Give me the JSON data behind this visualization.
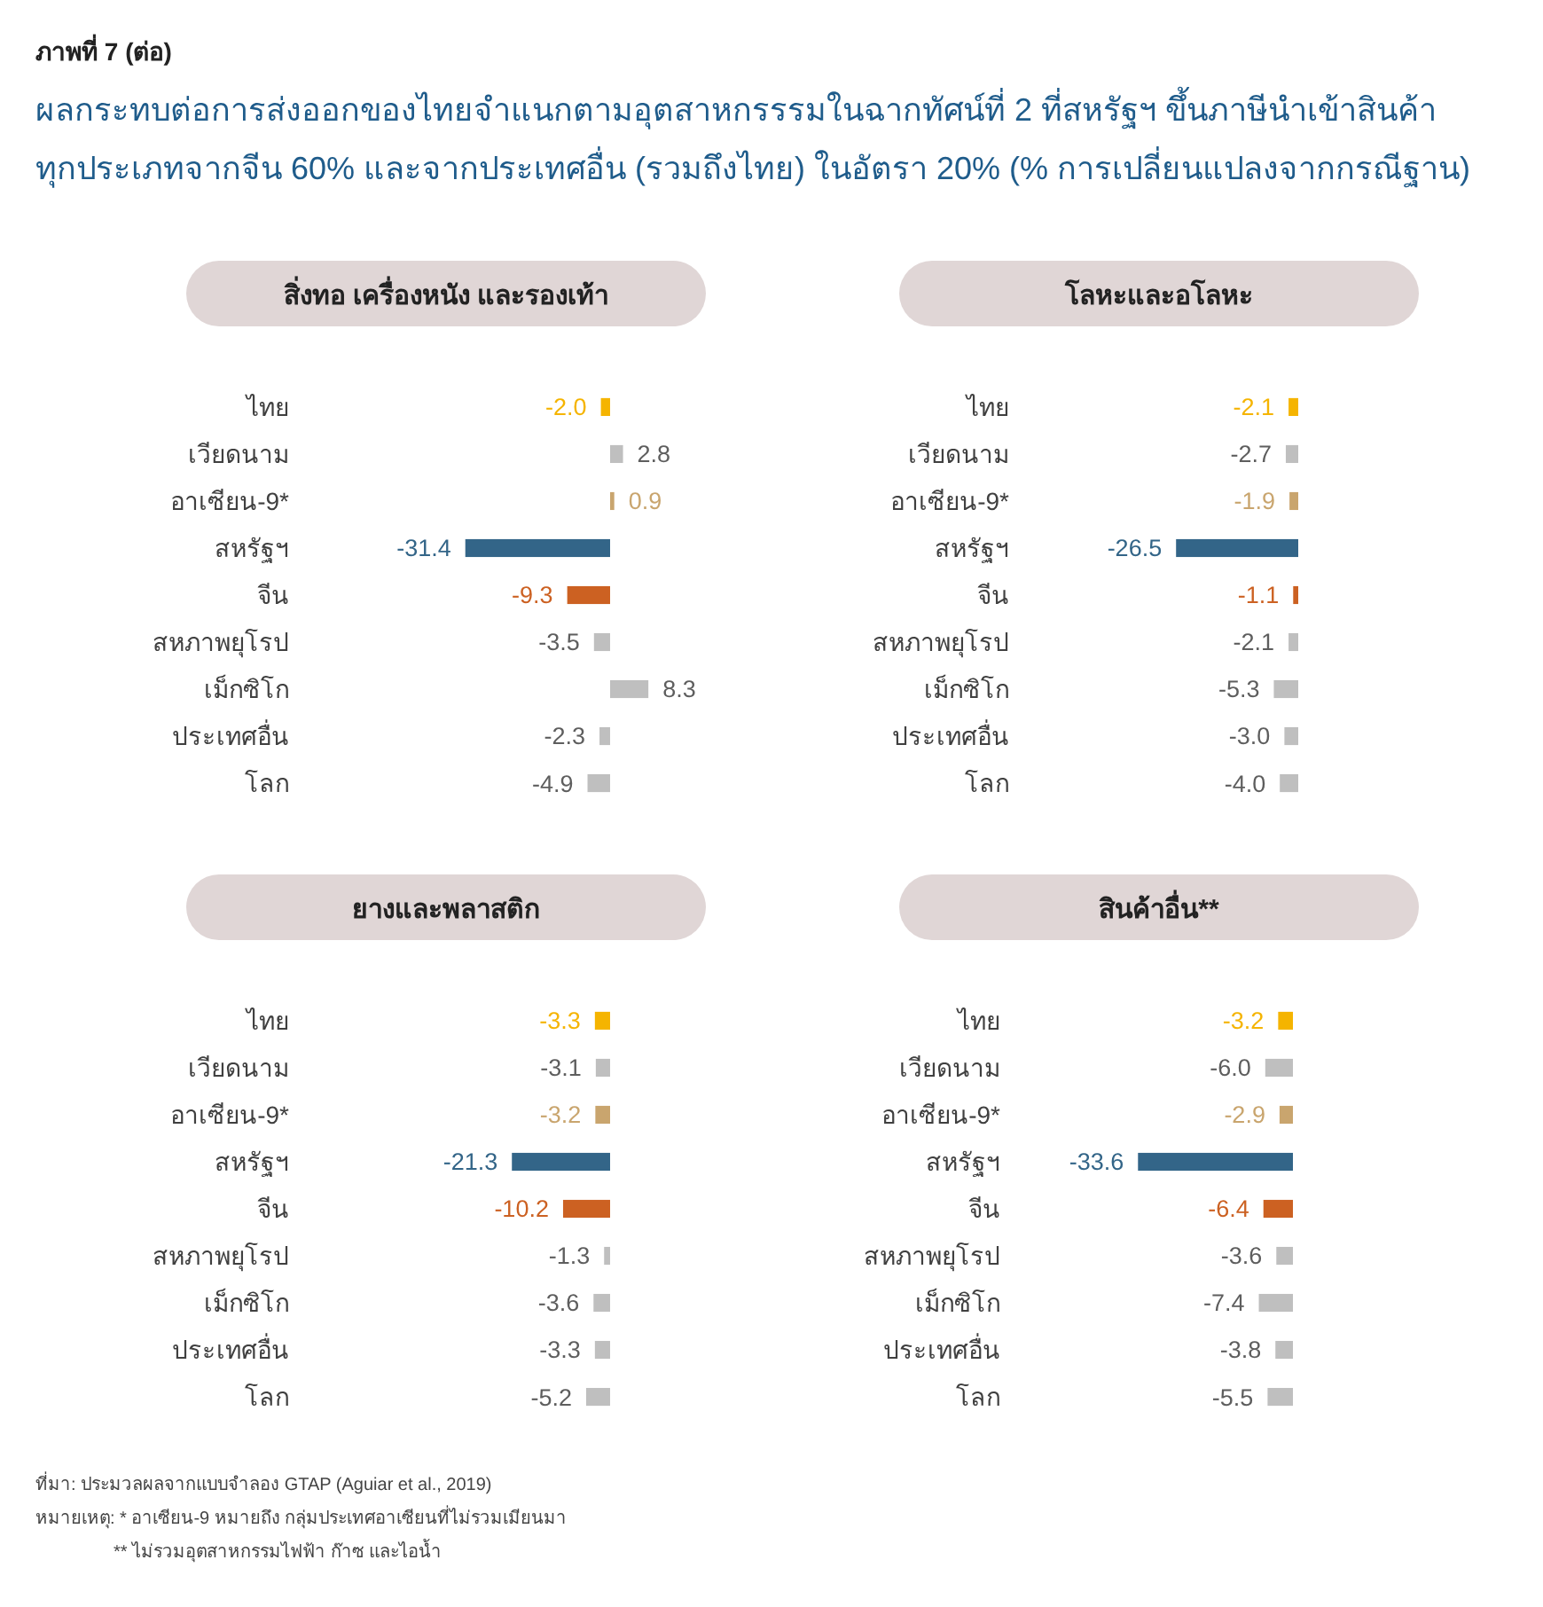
{
  "chart_data": [
    {
      "type": "bar",
      "orientation": "horizontal",
      "title": "สิ่งทอ เครื่องหนัง และรองเท้า",
      "categories": [
        "ไทย",
        "เวียดนาม",
        "อาเซียน-9*",
        "สหรัฐฯ",
        "จีน",
        "สหภาพยุโรป",
        "เม็กซิโก",
        "ประเทศอื่น",
        "โลก"
      ],
      "values": [
        -2.0,
        2.8,
        0.9,
        -31.4,
        -9.3,
        -3.5,
        8.3,
        -2.3,
        -4.9
      ],
      "colors": [
        "#f5b400",
        "#bfbfbf",
        "#c9a56e",
        "#336588",
        "#cc6122",
        "#bfbfbf",
        "#bfbfbf",
        "#bfbfbf",
        "#bfbfbf"
      ],
      "value_labels": [
        "-2.0",
        "2.8",
        "0.9",
        "-31.4",
        "-9.3",
        "-3.5",
        "8.3",
        "-2.3",
        "-4.9"
      ],
      "annotations": [
        "ภาพที่ 7 (ต่อ)",
        "ผลกระทบต่อการส่งออกของไทยจำแนกตามอุตสาหกรรรมในฉากทัศน์ที่ 2 ที่สหรัฐฯ ขึ้นภาษีนำเข้าสินค้า",
        "ทุกประเภทจากจีน 60% และจากประเทศอื่น (รวมถึงไทย) ในอัตรา 20% (% การเปลี่ยนแปลงจากกรณีฐาน)"
      ]
    },
    {
      "type": "bar",
      "orientation": "horizontal",
      "title": "โลหะและอโลหะ",
      "categories": [
        "ไทย",
        "เวียดนาม",
        "อาเซียน-9*",
        "สหรัฐฯ",
        "จีน",
        "สหภาพยุโรป",
        "เม็กซิโก",
        "ประเทศอื่น",
        "โลก"
      ],
      "values": [
        -2.1,
        -2.7,
        -1.9,
        -26.5,
        -1.1,
        -2.1,
        -5.3,
        -3.0,
        -4.0
      ],
      "colors": [
        "#f5b400",
        "#bfbfbf",
        "#c9a56e",
        "#336588",
        "#cc6122",
        "#bfbfbf",
        "#bfbfbf",
        "#bfbfbf",
        "#bfbfbf"
      ],
      "value_labels": [
        "-2.1",
        "-2.7",
        "-1.9",
        "-26.5",
        "-1.1",
        "-2.1",
        "-5.3",
        "-3.0",
        "-4.0"
      ]
    },
    {
      "type": "bar",
      "orientation": "horizontal",
      "title": "ยางและพลาสติก",
      "categories": [
        "ไทย",
        "เวียดนาม",
        "อาเซียน-9*",
        "สหรัฐฯ",
        "จีน",
        "สหภาพยุโรป",
        "เม็กซิโก",
        "ประเทศอื่น",
        "โลก"
      ],
      "values": [
        -3.3,
        -3.1,
        -3.2,
        -21.3,
        -10.2,
        -1.3,
        -3.6,
        -3.3,
        -5.2
      ],
      "colors": [
        "#f5b400",
        "#bfbfbf",
        "#c9a56e",
        "#336588",
        "#cc6122",
        "#bfbfbf",
        "#bfbfbf",
        "#bfbfbf",
        "#bfbfbf"
      ],
      "value_labels": [
        "-3.3",
        "-3.1",
        "-3.2",
        "-21.3",
        "-10.2",
        "-1.3",
        "-3.6",
        "-3.3",
        "-5.2"
      ]
    },
    {
      "type": "bar",
      "orientation": "horizontal",
      "title": "สินค้าอื่น**",
      "categories": [
        "ไทย",
        "เวียดนาม",
        "อาเซียน-9*",
        "สหรัฐฯ",
        "จีน",
        "สหภาพยุโรป",
        "เม็กซิโก",
        "ประเทศอื่น",
        "โลก"
      ],
      "values": [
        -3.2,
        -6.0,
        -2.9,
        -33.6,
        -6.4,
        -3.6,
        -7.4,
        -3.8,
        -5.5
      ],
      "colors": [
        "#f5b400",
        "#bfbfbf",
        "#c9a56e",
        "#336588",
        "#cc6122",
        "#bfbfbf",
        "#bfbfbf",
        "#bfbfbf",
        "#bfbfbf"
      ],
      "value_labels": [
        "-3.2",
        "-6.0",
        "-2.9",
        "-33.6",
        "-6.4",
        "-3.6",
        "-7.4",
        "-3.8",
        "-5.5"
      ],
      "annotations": [
        "ที่มา: ประมวลผลจากแบบจำลอง GTAP (Aguiar et al., 2019)",
        "หมายเหตุ: * อาเซียน-9 หมายถึง กลุ่มประเทศอาเซียนที่ไม่รวมเมียนมา",
        "** ไม่รวมอุตสาหกรรมไฟฟ้า ก๊าซ และไอน้ำ"
      ]
    }
  ]
}
